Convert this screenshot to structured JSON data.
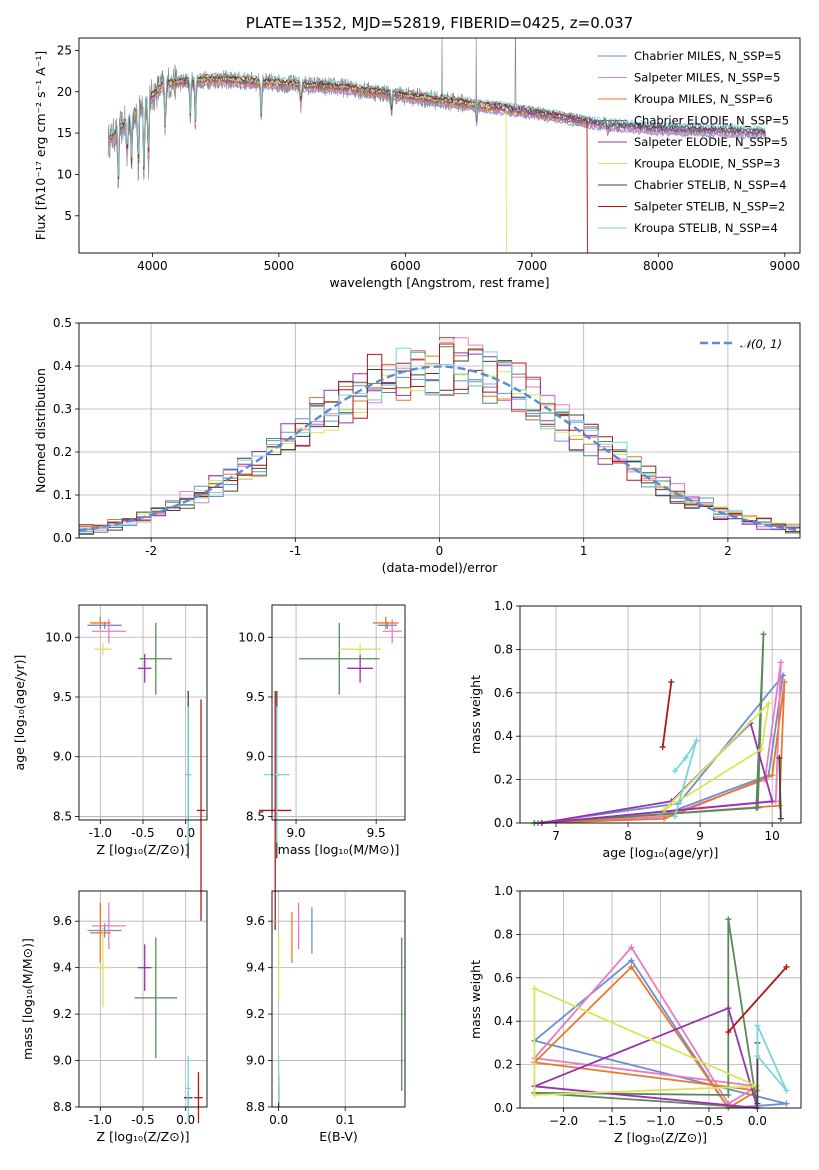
{
  "chart_data": [
    {
      "type": "line",
      "title": "PLATE=1352, MJD=52819, FIBERID=0425, z=0.037",
      "xlabel": "wavelength [Angstrom, rest frame]",
      "ylabel": "Flux [fλ10⁻¹⁷ erg cm⁻² s⁻¹ A⁻¹]",
      "xlim": [
        3420,
        9120
      ],
      "ylim": [
        0.5,
        26.5
      ],
      "xticks": [
        4000,
        5000,
        6000,
        7000,
        8000,
        9000
      ],
      "yticks": [
        5,
        10,
        15,
        20,
        25
      ],
      "legend_position": "upper-right",
      "data_range": [
        3650,
        8850
      ],
      "series": [
        {
          "name": "Chabrier MILES, N_SSP=5",
          "color": "#6a8fd6"
        },
        {
          "name": "Salpeter MILES, N_SSP=5",
          "color": "#e97bc0"
        },
        {
          "name": "Kroupa MILES, N_SSP=6",
          "color": "#e8792c"
        },
        {
          "name": "Chabrier ELODIE, N_SSP=5",
          "color": "#5a8a5a"
        },
        {
          "name": "Salpeter ELODIE, N_SSP=5",
          "color": "#9b30b0"
        },
        {
          "name": "Kroupa ELODIE, N_SSP=3",
          "color": "#d6e65a"
        },
        {
          "name": "Chabrier STELIB, N_SSP=4",
          "color": "#404040"
        },
        {
          "name": "Salpeter STELIB, N_SSP=2",
          "color": "#b01818"
        },
        {
          "name": "Kroupa STELIB, N_SSP=4",
          "color": "#79d5d9"
        }
      ],
      "data_color": "#808080",
      "continuum": [
        [
          3650,
          14
        ],
        [
          3900,
          18
        ],
        [
          4100,
          21
        ],
        [
          4500,
          21.5
        ],
        [
          5000,
          21
        ],
        [
          5500,
          20.5
        ],
        [
          6000,
          19.5
        ],
        [
          6500,
          18.5
        ],
        [
          7000,
          17.5
        ],
        [
          7500,
          16.2
        ],
        [
          8000,
          15.5
        ],
        [
          8500,
          15.3
        ],
        [
          8850,
          15
        ]
      ]
    },
    {
      "type": "histogram",
      "xlabel": "(data-model)/error",
      "ylabel": "Normed distribution",
      "xlim": [
        -2.5,
        2.5
      ],
      "ylim": [
        0,
        0.5
      ],
      "xticks": [
        -2,
        -1,
        0,
        1,
        2
      ],
      "yticks": [
        0.0,
        0.1,
        0.2,
        0.3,
        0.4,
        0.5
      ],
      "legend": "𝒩(0, 1)",
      "legend_position": "upper-right",
      "bin_width": 0.1,
      "model": "normal(0,1)"
    },
    {
      "type": "errorbar",
      "xlabel": "Z [log₁₀(Z/Z⊙)]",
      "ylabel": "age  [log₁₀(age/yr)]",
      "xlim": [
        -1.25,
        0.25
      ],
      "ylim": [
        8.47,
        10.27
      ],
      "xticks": [
        -1.0,
        -0.5,
        0.0
      ],
      "yticks": [
        8.5,
        9.0,
        9.5,
        10.0
      ],
      "points": [
        {
          "c": "#6a8fd6",
          "x": -0.95,
          "y": 10.1,
          "xe": 0.2,
          "ye": 0.03
        },
        {
          "c": "#e97bc0",
          "x": -0.9,
          "y": 10.05,
          "xe": 0.2,
          "ye": 0.1
        },
        {
          "c": "#e8792c",
          "x": -1.0,
          "y": 10.12,
          "xe": 0.12,
          "ye": 0.05
        },
        {
          "c": "#5a8a5a",
          "x": -0.35,
          "y": 9.82,
          "xe": 0.19,
          "ye": 0.3
        },
        {
          "c": "#9b30b0",
          "x": -0.48,
          "y": 9.74,
          "xe": 0.08,
          "ye": 0.12
        },
        {
          "c": "#d6e65a",
          "x": -0.97,
          "y": 9.9,
          "xe": 0.1,
          "ye": 0.05
        },
        {
          "c": "#404040",
          "x": 0.03,
          "y": 8.85,
          "xe": 0.02,
          "ye": 0.7
        },
        {
          "c": "#b01818",
          "x": 0.18,
          "y": 8.55,
          "xe": 0.05,
          "ye": 0.93
        },
        {
          "c": "#79d5d9",
          "x": 0.03,
          "y": 8.85,
          "xe": 0.04,
          "ye": 0.57
        }
      ]
    },
    {
      "type": "errorbar",
      "xlabel": "mass [log₁₀(M/M⊙)]",
      "xlim": [
        8.85,
        9.68
      ],
      "ylim": [
        8.47,
        10.27
      ],
      "xticks": [
        9.0,
        9.5
      ],
      "yticks": [
        8.5,
        9.0,
        9.5,
        10.0
      ],
      "points": [
        {
          "c": "#6a8fd6",
          "x": 9.57,
          "y": 10.1,
          "xe": 0.06,
          "ye": 0.03
        },
        {
          "c": "#e97bc0",
          "x": 9.6,
          "y": 10.05,
          "xe": 0.06,
          "ye": 0.1
        },
        {
          "c": "#e8792c",
          "x": 9.56,
          "y": 10.12,
          "xe": 0.08,
          "ye": 0.05
        },
        {
          "c": "#5a8a5a",
          "x": 9.27,
          "y": 9.82,
          "xe": 0.25,
          "ye": 0.3
        },
        {
          "c": "#9b30b0",
          "x": 9.4,
          "y": 9.74,
          "xe": 0.08,
          "ye": 0.12
        },
        {
          "c": "#d6e65a",
          "x": 9.4,
          "y": 9.9,
          "xe": 0.13,
          "ye": 0.05
        },
        {
          "c": "#404040",
          "x": 8.88,
          "y": 8.85,
          "xe": 0.02,
          "ye": 0.7
        },
        {
          "c": "#b01818",
          "x": 8.87,
          "y": 8.55,
          "xe": 0.1,
          "ye": 1.0
        },
        {
          "c": "#79d5d9",
          "x": 8.88,
          "y": 8.85,
          "xe": 0.08,
          "ye": 0.57
        }
      ]
    },
    {
      "type": "line",
      "xlabel": "age  [log₁₀(age/yr)]",
      "ylabel": "mass weight",
      "xlim": [
        6.5,
        10.4
      ],
      "ylim": [
        0.0,
        1.0
      ],
      "xticks": [
        7,
        8,
        9,
        10
      ],
      "yticks": [
        0.0,
        0.2,
        0.4,
        0.6,
        0.8,
        1.0
      ],
      "series": [
        {
          "c": "#6a8fd6",
          "pts": [
            [
              6.75,
              0
            ],
            [
              8.5,
              0.04
            ],
            [
              9.95,
              0.22
            ],
            [
              10.15,
              0.68
            ],
            [
              8.7,
              0.09
            ],
            [
              6.75,
              0
            ]
          ]
        },
        {
          "c": "#e97bc0",
          "pts": [
            [
              6.8,
              0
            ],
            [
              8.5,
              0.03
            ],
            [
              9.9,
              0.2
            ],
            [
              10.12,
              0.74
            ],
            [
              10.05,
              0.1
            ],
            [
              6.8,
              0
            ]
          ]
        },
        {
          "c": "#e8792c",
          "pts": [
            [
              6.8,
              0
            ],
            [
              8.5,
              0.02
            ],
            [
              10.0,
              0.22
            ],
            [
              10.17,
              0.65
            ],
            [
              10.1,
              0.08
            ],
            [
              6.8,
              0
            ]
          ]
        },
        {
          "c": "#5a8a5a",
          "pts": [
            [
              6.7,
              0
            ],
            [
              9.8,
              0.07
            ],
            [
              9.88,
              0.87
            ],
            [
              9.78,
              0.07
            ],
            [
              6.7,
              0
            ]
          ]
        },
        {
          "c": "#9b30b0",
          "pts": [
            [
              6.8,
              0
            ],
            [
              8.6,
              0.1
            ],
            [
              9.7,
              0.46
            ],
            [
              10.0,
              0.1
            ],
            [
              6.8,
              0
            ]
          ]
        },
        {
          "c": "#d6e65a",
          "pts": [
            [
              8.5,
              0.06
            ],
            [
              9.95,
              0.55
            ],
            [
              9.85,
              0.34
            ],
            [
              8.5,
              0.06
            ]
          ]
        },
        {
          "c": "#404040",
          "pts": [
            [
              10.1,
              0.3
            ],
            [
              10.12,
              0.02
            ]
          ]
        },
        {
          "c": "#b01818",
          "pts": [
            [
              8.48,
              0.35
            ],
            [
              8.6,
              0.65
            ]
          ]
        },
        {
          "c": "#79d5d9",
          "pts": [
            [
              8.65,
              0.24
            ],
            [
              8.8,
              0.3
            ],
            [
              8.95,
              0.38
            ],
            [
              8.65,
              0.03
            ]
          ]
        }
      ]
    },
    {
      "type": "errorbar",
      "xlabel": "Z [log₁₀(Z/Z⊙)]",
      "ylabel": "mass [log₁₀(M/M⊙)]",
      "xlim": [
        -1.25,
        0.25
      ],
      "ylim": [
        8.8,
        9.73
      ],
      "xticks": [
        -1.0,
        -0.5,
        0.0
      ],
      "yticks": [
        8.8,
        9.0,
        9.2,
        9.4,
        9.6
      ],
      "points": [
        {
          "c": "#6a8fd6",
          "x": -0.95,
          "y": 9.56,
          "xe": 0.2,
          "ye": 0.03
        },
        {
          "c": "#e97bc0",
          "x": -0.9,
          "y": 9.58,
          "xe": 0.2,
          "ye": 0.1
        },
        {
          "c": "#e8792c",
          "x": -1.0,
          "y": 9.55,
          "xe": 0.12,
          "ye": 0.13
        },
        {
          "c": "#5a8a5a",
          "x": -0.35,
          "y": 9.27,
          "xe": 0.25,
          "ye": 0.26
        },
        {
          "c": "#9b30b0",
          "x": -0.48,
          "y": 9.4,
          "xe": 0.08,
          "ye": 0.1
        },
        {
          "c": "#d6e65a",
          "x": -0.97,
          "y": 9.4,
          "xe": 0.1,
          "ye": 0.17
        },
        {
          "c": "#404040",
          "x": 0.03,
          "y": 8.84,
          "xe": 0.05,
          "ye": 0.03
        },
        {
          "c": "#b01818",
          "x": 0.15,
          "y": 8.84,
          "xe": 0.05,
          "ye": 0.11
        },
        {
          "c": "#79d5d9",
          "x": 0.03,
          "y": 8.88,
          "xe": 0.03,
          "ye": 0.14
        }
      ]
    },
    {
      "type": "errorbar",
      "xlabel": "E(B-V)",
      "xlim": [
        -0.01,
        0.19
      ],
      "ylim": [
        8.8,
        9.73
      ],
      "xticks": [
        0.0,
        0.1
      ],
      "yticks": [
        8.8,
        9.0,
        9.2,
        9.4,
        9.6
      ],
      "points": [
        {
          "c": "#6a8fd6",
          "x": 0.05,
          "y": 9.56,
          "xe": 0.0,
          "ye": 0.1
        },
        {
          "c": "#e97bc0",
          "x": 0.03,
          "y": 9.58,
          "xe": 0.0,
          "ye": 0.1
        },
        {
          "c": "#e8792c",
          "x": 0.02,
          "y": 9.53,
          "xe": 0.0,
          "ye": 0.11
        },
        {
          "c": "#5a8a5a",
          "x": 0.185,
          "y": 9.2,
          "xe": 0.0,
          "ye": 0.33
        },
        {
          "c": "#d6e65a",
          "x": 0.0,
          "y": 9.4,
          "xe": 0.0,
          "ye": 0.14
        },
        {
          "c": "#404040",
          "x": 0.0,
          "y": 8.85,
          "xe": 0.0,
          "ye": 0.05
        },
        {
          "c": "#b01818",
          "x": 0.0,
          "y": 8.88,
          "xe": 0.0,
          "ye": 0.06
        },
        {
          "c": "#79d5d9",
          "x": 0.0,
          "y": 8.92,
          "xe": 0.0,
          "ye": 0.1
        }
      ]
    },
    {
      "type": "line",
      "xlabel": "Z [log₁₀(Z/Z⊙)]",
      "ylabel": "mass weight",
      "xlim": [
        -2.45,
        0.45
      ],
      "ylim": [
        0.0,
        1.0
      ],
      "xticks": [
        -2.0,
        -1.5,
        -1.0,
        -0.5,
        0.0
      ],
      "yticks": [
        0.0,
        0.2,
        0.4,
        0.6,
        0.8,
        1.0
      ],
      "series": [
        {
          "c": "#6a8fd6",
          "pts": [
            [
              -2.3,
              0.31
            ],
            [
              -1.3,
              0.68
            ],
            [
              -0.3,
              0.0
            ],
            [
              0.3,
              0.02
            ],
            [
              -2.3,
              0.31
            ]
          ]
        },
        {
          "c": "#e97bc0",
          "pts": [
            [
              -2.3,
              0.23
            ],
            [
              -1.3,
              0.74
            ],
            [
              -0.3,
              0.02
            ],
            [
              0.0,
              0.1
            ],
            [
              -2.3,
              0.23
            ]
          ]
        },
        {
          "c": "#e8792c",
          "pts": [
            [
              -2.3,
              0.21
            ],
            [
              -1.3,
              0.65
            ],
            [
              -0.3,
              0.0
            ],
            [
              0.0,
              0.08
            ],
            [
              -2.3,
              0.21
            ]
          ]
        },
        {
          "c": "#5a8a5a",
          "pts": [
            [
              -2.3,
              0.07
            ],
            [
              -0.3,
              0.06
            ],
            [
              -0.3,
              0.87
            ],
            [
              0.0,
              0.0
            ],
            [
              -2.3,
              0.07
            ]
          ]
        },
        {
          "c": "#9b30b0",
          "pts": [
            [
              -2.3,
              0.1
            ],
            [
              -0.3,
              0.46
            ],
            [
              0.0,
              0.0
            ],
            [
              -2.3,
              0.1
            ]
          ]
        },
        {
          "c": "#d6e65a",
          "pts": [
            [
              -2.3,
              0.55
            ],
            [
              0.0,
              0.1
            ],
            [
              -2.3,
              0.06
            ],
            [
              -2.3,
              0.55
            ]
          ]
        },
        {
          "c": "#404040",
          "pts": [
            [
              0.0,
              0.3
            ],
            [
              0.0,
              0.02
            ]
          ]
        },
        {
          "c": "#b01818",
          "pts": [
            [
              -0.3,
              0.35
            ],
            [
              0.3,
              0.65
            ]
          ]
        },
        {
          "c": "#79d5d9",
          "pts": [
            [
              0.0,
              0.38
            ],
            [
              0.0,
              0.24
            ],
            [
              0.3,
              0.08
            ],
            [
              0.0,
              0.38
            ]
          ]
        }
      ]
    }
  ]
}
